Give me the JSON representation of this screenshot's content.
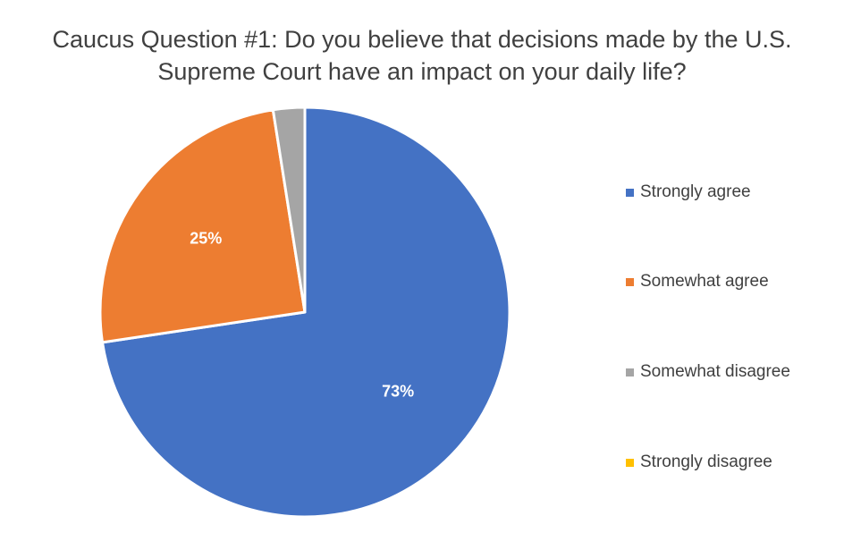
{
  "chart_data": {
    "type": "pie",
    "title": "Caucus Question #1: Do you believe that decisions made by the U.S. Supreme Court have an impact on your daily life?",
    "title_lines": [
      "Caucus Question #1: Do you believe that decisions made by the U.S.",
      "Supreme Court have an impact on your daily life?"
    ],
    "legend_position": "right",
    "slices": [
      {
        "label": "Strongly agree",
        "value": 73,
        "display": "73%",
        "color": "#4472C4",
        "show_label": true
      },
      {
        "label": "Somewhat agree",
        "value": 25,
        "display": "25%",
        "color": "#ED7D31",
        "show_label": true
      },
      {
        "label": "Somewhat disagree",
        "value": 2.5,
        "display": "",
        "color": "#A5A5A5",
        "show_label": false
      },
      {
        "label": "Strongly disagree",
        "value": 0,
        "display": "",
        "color": "#FFC000",
        "show_label": false
      }
    ]
  }
}
